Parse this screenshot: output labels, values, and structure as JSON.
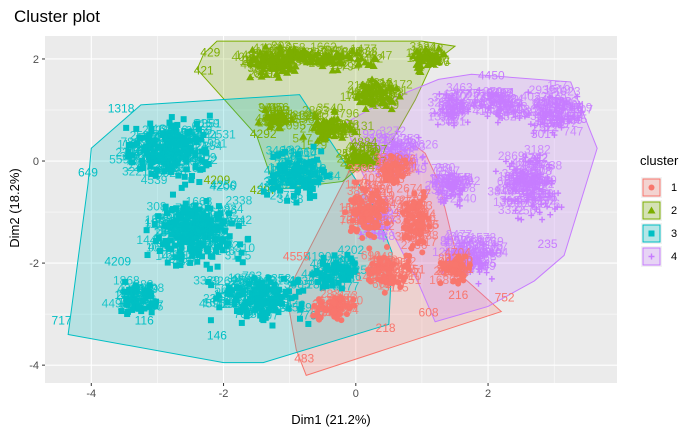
{
  "chart_data": {
    "type": "scatter",
    "title": "Cluster plot",
    "xlabel": "Dim1 (21.2%)",
    "ylabel": "Dim2 (18.2%)",
    "xlim": [
      -4.7,
      3.95
    ],
    "ylim": [
      -4.35,
      2.45
    ],
    "x_ticks": [
      -4,
      -2,
      0,
      2
    ],
    "y_ticks": [
      -4,
      -2,
      0,
      2
    ],
    "grid": true,
    "background": "#ebebeb",
    "legend": {
      "title": "cluster",
      "position": "right",
      "items": [
        "1",
        "2",
        "3",
        "4"
      ]
    },
    "series": [
      {
        "name": "1",
        "color": "#F8766D",
        "shape": "circle",
        "hull": [
          [
            -0.75,
            -4.2
          ],
          [
            2.2,
            -2.95
          ],
          [
            1.6,
            -2.25
          ],
          [
            1.25,
            -0.4
          ],
          [
            1.05,
            0.15
          ],
          [
            0.9,
            0.3
          ],
          [
            -0.1,
            -0.2
          ],
          [
            -1.05,
            -2.6
          ],
          [
            -0.9,
            -3.7
          ]
        ],
        "labels": [
          {
            "text": "483",
            "x": -0.78,
            "y": -3.95
          },
          {
            "text": "218",
            "x": 0.45,
            "y": -3.35
          },
          {
            "text": "4555",
            "x": -0.9,
            "y": -1.95
          },
          {
            "text": "752",
            "x": 2.25,
            "y": -2.75
          },
          {
            "text": "216",
            "x": 1.55,
            "y": -2.7
          },
          {
            "text": "1551",
            "x": 0.85,
            "y": -2.2
          },
          {
            "text": "608",
            "x": 1.1,
            "y": -3.05
          }
        ],
        "clouds": [
          [
            0.9,
            -1.2,
            0.3,
            0.9
          ],
          [
            0.2,
            -1.0,
            0.45,
            0.8
          ],
          [
            0.5,
            -2.2,
            0.5,
            0.5
          ],
          [
            1.5,
            -2.1,
            0.3,
            0.4
          ],
          [
            -0.3,
            -2.9,
            0.5,
            0.3
          ],
          [
            0.6,
            -0.2,
            0.35,
            0.35
          ]
        ]
      },
      {
        "name": "2",
        "color": "#7CAE00",
        "shape": "triangle",
        "hull": [
          [
            -2.4,
            1.8
          ],
          [
            -2.3,
            2.1
          ],
          [
            -2.1,
            2.35
          ],
          [
            1.0,
            2.35
          ],
          [
            1.5,
            2.25
          ],
          [
            1.15,
            1.9
          ],
          [
            0.9,
            1.2
          ],
          [
            0.55,
            0.4
          ],
          [
            -0.2,
            -0.4
          ],
          [
            -1.15,
            -0.55
          ],
          [
            -1.3,
            -0.25
          ],
          [
            -1.5,
            0.5
          ]
        ],
        "labels": [
          {
            "text": "421",
            "x": -2.3,
            "y": 1.7
          },
          {
            "text": "429",
            "x": -2.2,
            "y": 2.05
          },
          {
            "text": "4897",
            "x": 0.5,
            "y": 1.22
          },
          {
            "text": "4292",
            "x": -1.4,
            "y": 0.45
          },
          {
            "text": "4209",
            "x": -2.1,
            "y": -0.45
          },
          {
            "text": "4297",
            "x": -1.4,
            "y": -0.65
          }
        ],
        "clouds": [
          [
            -0.6,
            2.0,
            1.3,
            0.3
          ],
          [
            -1.3,
            1.9,
            0.6,
            0.35
          ],
          [
            1.1,
            2.0,
            0.3,
            0.3
          ],
          [
            0.3,
            1.3,
            0.5,
            0.4
          ],
          [
            -0.4,
            0.6,
            0.55,
            0.45
          ],
          [
            0.05,
            0.05,
            0.35,
            0.3
          ],
          [
            -1.2,
            0.8,
            0.3,
            0.3
          ]
        ]
      },
      {
        "name": "3",
        "color": "#00BFC4",
        "shape": "square",
        "hull": [
          [
            -4.35,
            -3.4
          ],
          [
            -2.0,
            -3.95
          ],
          [
            -1.4,
            -3.95
          ],
          [
            0.5,
            -3.2
          ],
          [
            0.55,
            -1.8
          ],
          [
            0.3,
            -0.95
          ],
          [
            -0.85,
            1.3
          ],
          [
            -1.45,
            1.25
          ],
          [
            -3.25,
            1.1
          ],
          [
            -4.0,
            0.25
          ],
          [
            -4.05,
            -0.45
          ]
        ],
        "labels": [
          {
            "text": "717",
            "x": -4.45,
            "y": -3.2
          },
          {
            "text": "391",
            "x": -3.45,
            "y": -2.95
          },
          {
            "text": "116",
            "x": -3.2,
            "y": -3.2
          },
          {
            "text": "146",
            "x": -2.1,
            "y": -3.5
          },
          {
            "text": "1318",
            "x": -3.55,
            "y": 0.95
          },
          {
            "text": "649",
            "x": -4.05,
            "y": -0.3
          },
          {
            "text": "4250",
            "x": -2.0,
            "y": -0.55
          },
          {
            "text": "4209",
            "x": -3.6,
            "y": -2.05
          }
        ],
        "clouds": [
          [
            -2.8,
            0.2,
            0.95,
            0.85
          ],
          [
            -2.4,
            -1.4,
            1.0,
            0.95
          ],
          [
            -1.5,
            -2.7,
            0.9,
            0.65
          ],
          [
            -0.9,
            -0.3,
            0.6,
            0.7
          ],
          [
            -3.3,
            -2.7,
            0.4,
            0.4
          ],
          [
            -0.3,
            -2.2,
            0.5,
            0.5
          ]
        ]
      },
      {
        "name": "4",
        "color": "#C77CFF",
        "shape": "plus",
        "hull": [
          [
            -0.15,
            0.75
          ],
          [
            0.4,
            1.15
          ],
          [
            1.25,
            1.6
          ],
          [
            1.75,
            1.7
          ],
          [
            3.25,
            1.55
          ],
          [
            3.65,
            0.25
          ],
          [
            3.15,
            -1.85
          ],
          [
            2.7,
            -2.35
          ],
          [
            2.0,
            -2.85
          ],
          [
            1.2,
            -3.15
          ],
          [
            0.95,
            -2.4
          ],
          [
            0.35,
            -0.9
          ],
          [
            0.05,
            -0.1
          ]
        ],
        "labels": [
          {
            "text": "4450",
            "x": 2.05,
            "y": 1.6
          },
          {
            "text": "301",
            "x": 2.8,
            "y": 0.45
          },
          {
            "text": "245",
            "x": 3.35,
            "y": 0.75
          },
          {
            "text": "235",
            "x": 2.9,
            "y": -1.7
          },
          {
            "text": "920",
            "x": 0.25,
            "y": 0.45
          }
        ],
        "clouds": [
          [
            3.0,
            0.9,
            0.6,
            0.55
          ],
          [
            2.2,
            1.1,
            0.6,
            0.4
          ],
          [
            1.5,
            1.0,
            0.35,
            0.45
          ],
          [
            2.6,
            -0.5,
            0.6,
            0.9
          ],
          [
            1.7,
            -1.9,
            0.6,
            0.6
          ],
          [
            0.6,
            0.1,
            0.55,
            0.55
          ],
          [
            0.3,
            -1.2,
            0.3,
            0.5
          ],
          [
            1.4,
            -0.5,
            0.4,
            0.5
          ]
        ]
      }
    ]
  }
}
